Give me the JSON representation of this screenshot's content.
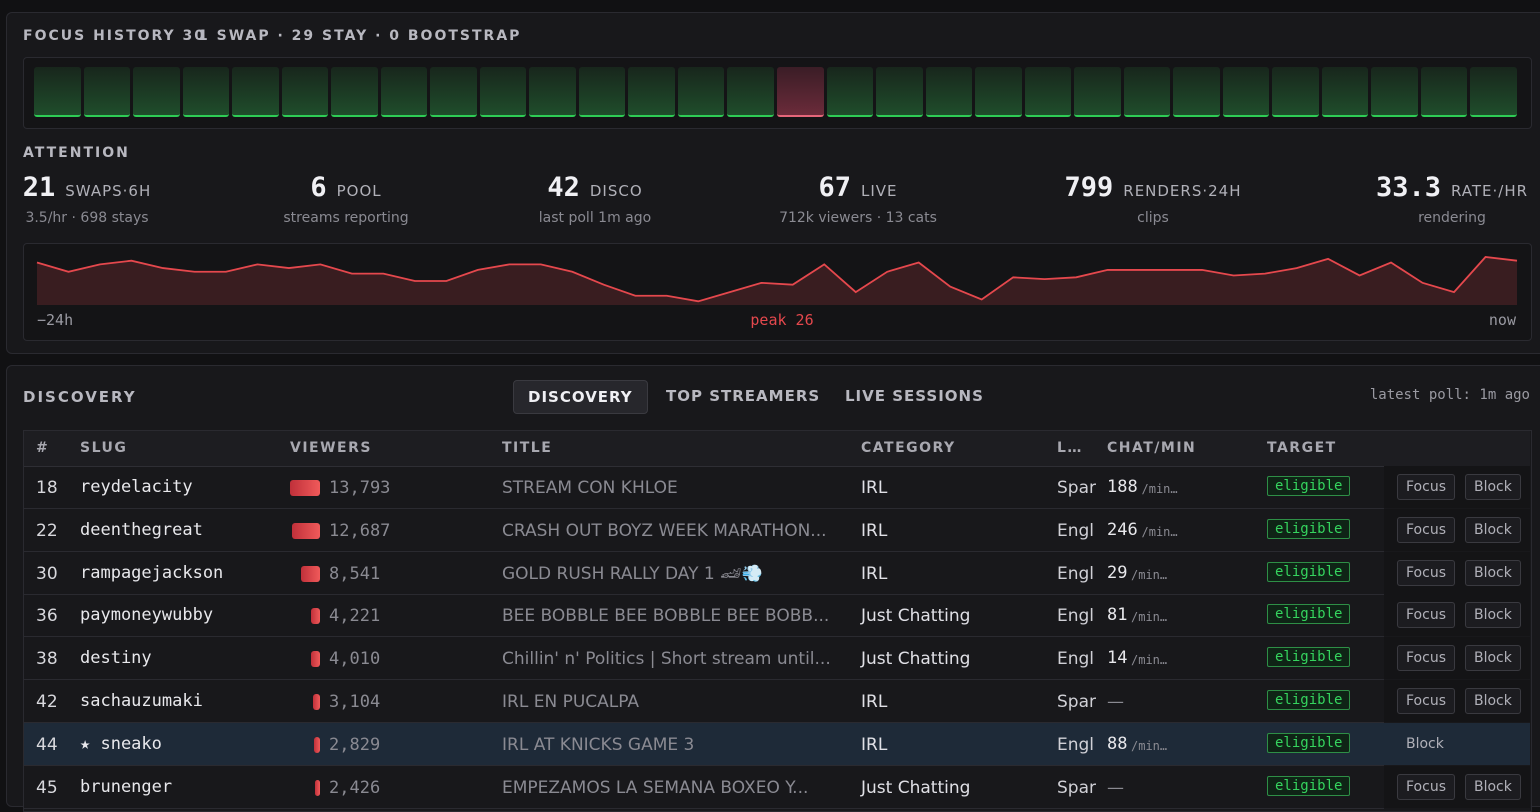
{
  "focus_history": {
    "title": "FOCUS HISTORY 30",
    "summary": "1 SWAP · 29 STAY · 0 BOOTSTRAP",
    "cells": [
      "stay",
      "stay",
      "stay",
      "stay",
      "stay",
      "stay",
      "stay",
      "stay",
      "stay",
      "stay",
      "stay",
      "stay",
      "stay",
      "stay",
      "stay",
      "swap",
      "stay",
      "stay",
      "stay",
      "stay",
      "stay",
      "stay",
      "stay",
      "stay",
      "stay",
      "stay",
      "stay",
      "stay",
      "stay",
      "stay"
    ]
  },
  "attention": {
    "title": "ATTENTION",
    "stats": [
      {
        "value": 21,
        "label": "SWAPS·6H",
        "sub": "3.5/hr · 698 stays"
      },
      {
        "value": 6,
        "label": "POOL",
        "sub": "streams reporting"
      },
      {
        "value": 42,
        "label": "DISCO",
        "sub": "last poll 1m ago"
      },
      {
        "value": 67,
        "label": "LIVE",
        "sub": "712k viewers · 13 cats"
      },
      {
        "value": 799,
        "label": "RENDERS·24H",
        "sub": "clips"
      },
      {
        "value": 33.3,
        "label": "RATE·/HR",
        "sub": "rendering"
      }
    ],
    "sparkline": {
      "values": [
        23,
        18,
        22,
        24,
        20,
        18,
        18,
        22,
        20,
        22,
        17,
        17,
        13,
        13,
        19,
        22,
        22,
        18,
        11,
        5,
        5,
        2,
        7,
        12,
        11,
        22,
        7,
        18,
        23,
        10,
        3,
        15,
        14,
        15,
        19,
        19,
        19,
        19,
        16,
        17,
        20,
        25,
        16,
        23,
        12,
        7,
        26,
        24
      ],
      "start": "−24h",
      "peak": "peak 26",
      "end": "now",
      "color": "#e5484d"
    }
  },
  "discovery": {
    "title": "DISCOVERY",
    "tabs": [
      "DISCOVERY",
      "TOP STREAMERS",
      "LIVE SESSIONS"
    ],
    "active_tab": 0,
    "latest_poll": "latest poll: 1m ago",
    "columns": [
      "#",
      "SLUG",
      "VIEWERS",
      "TITLE",
      "CATEGORY",
      "L…",
      "CHAT/MIN",
      "TARGET"
    ],
    "chat_unit": "/min…",
    "rows": [
      {
        "rank": 18,
        "slug": "reydelacity",
        "viewers": {
          "value": 13793,
          "label": "13,793"
        },
        "title": "STREAM CON KHLOE",
        "category": "IRL",
        "lang": "Spar",
        "chat": 188,
        "target": "eligible",
        "actions": [
          "Focus",
          "Block"
        ]
      },
      {
        "rank": 22,
        "slug": "deenthegreat",
        "viewers": {
          "value": 12687,
          "label": "12,687"
        },
        "title": "CRASH OUT BOYZ WEEK MARATHON...",
        "category": "IRL",
        "lang": "Engl",
        "chat": 246,
        "target": "eligible",
        "actions": [
          "Focus",
          "Block"
        ]
      },
      {
        "rank": 30,
        "slug": "rampagejackson",
        "viewers": {
          "value": 8541,
          "label": "8,541"
        },
        "title": "GOLD RUSH RALLY DAY 1 🏎💨",
        "category": "IRL",
        "lang": "Engl",
        "chat": 29,
        "target": "eligible",
        "actions": [
          "Focus",
          "Block"
        ]
      },
      {
        "rank": 36,
        "slug": "paymoneywubby",
        "viewers": {
          "value": 4221,
          "label": "4,221"
        },
        "title": "BEE BOBBLE BEE BOBBLE BEE BOBB...",
        "category": "Just Chatting",
        "lang": "Engl",
        "chat": 81,
        "target": "eligible",
        "actions": [
          "Focus",
          "Block"
        ]
      },
      {
        "rank": 38,
        "slug": "destiny",
        "viewers": {
          "value": 4010,
          "label": "4,010"
        },
        "title": "Chillin' n' Politics | Short stream until...",
        "category": "Just Chatting",
        "lang": "Engl",
        "chat": 14,
        "target": "eligible",
        "actions": [
          "Focus",
          "Block"
        ]
      },
      {
        "rank": 42,
        "slug": "sachauzumaki",
        "viewers": {
          "value": 3104,
          "label": "3,104"
        },
        "title": "IRL EN PUCALPA",
        "category": "IRL",
        "lang": "Spar",
        "chat": "—",
        "target": "eligible",
        "actions": [
          "Focus",
          "Block"
        ]
      },
      {
        "rank": 44,
        "slug": "★ sneako",
        "viewers": {
          "value": 2829,
          "label": "2,829"
        },
        "title": "IRL AT KNICKS GAME 3",
        "category": "IRL",
        "lang": "Engl",
        "chat": 88,
        "target": "eligible",
        "actions": [
          "Block"
        ],
        "highlight": true
      },
      {
        "rank": 45,
        "slug": "brunenger",
        "viewers": {
          "value": 2426,
          "label": "2,426"
        },
        "title": "EMPEZAMOS LA SEMANA BOXEO Y...",
        "category": "Just Chatting",
        "lang": "Spar",
        "chat": "—",
        "target": "eligible",
        "actions": [
          "Focus",
          "Block"
        ]
      }
    ]
  }
}
